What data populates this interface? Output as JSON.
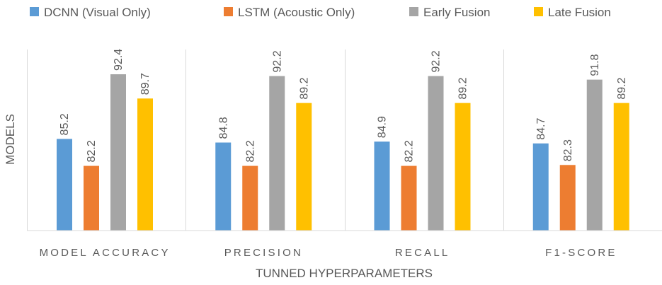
{
  "chart_data": {
    "type": "bar",
    "xlabel": "TUNNED HYPERPARAMETERS",
    "ylabel": "MODELS",
    "categories": [
      "MODEL ACCURACY",
      "PRECISION",
      "RECALL",
      "F1-SCORE"
    ],
    "series": [
      {
        "name": "DCNN (Visual Only)",
        "color": "#5b9bd5",
        "values": [
          85.2,
          84.8,
          84.9,
          84.7
        ]
      },
      {
        "name": "LSTM (Acoustic Only)",
        "color": "#ed7d31",
        "values": [
          82.2,
          82.2,
          82.2,
          82.3
        ]
      },
      {
        "name": "Early Fusion",
        "color": "#a5a5a5",
        "values": [
          92.4,
          92.2,
          92.2,
          91.8
        ]
      },
      {
        "name": "Late Fusion",
        "color": "#ffc000",
        "values": [
          89.7,
          89.2,
          89.2,
          89.2
        ]
      }
    ],
    "ylim": [
      75,
      94
    ],
    "legend_position": "top",
    "grid": false
  }
}
